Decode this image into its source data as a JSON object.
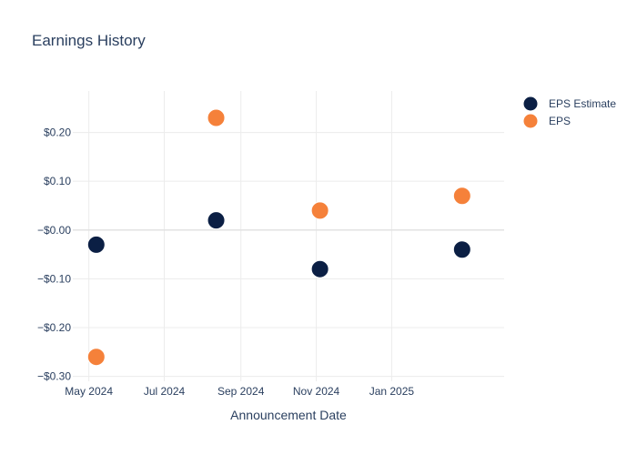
{
  "chart_data": {
    "type": "scatter",
    "title": "Earnings History",
    "xlabel": "Announcement Date",
    "ylabel": "",
    "x_type": "date",
    "xlim": [
      "2024-04-18",
      "2025-04-02"
    ],
    "ylim": [
      -0.31,
      0.285
    ],
    "x_ticks": [
      {
        "value": "2024-05-01",
        "label": "May 2024"
      },
      {
        "value": "2024-07-01",
        "label": "Jul 2024"
      },
      {
        "value": "2024-09-01",
        "label": "Sep 2024"
      },
      {
        "value": "2024-11-01",
        "label": "Nov 2024"
      },
      {
        "value": "2025-01-01",
        "label": "Jan 2025"
      }
    ],
    "y_ticks": [
      {
        "value": 0.2,
        "label": "$0.20"
      },
      {
        "value": 0.1,
        "label": "$0.10"
      },
      {
        "value": 0.0,
        "label": "−$0.00"
      },
      {
        "value": -0.1,
        "label": "−$0.10"
      },
      {
        "value": -0.2,
        "label": "−$0.20"
      },
      {
        "value": -0.3,
        "label": "−$0.30"
      }
    ],
    "grid": true,
    "legend_position": "top-right",
    "series": [
      {
        "name": "EPS Estimate",
        "color": "#0b1f44",
        "points": [
          {
            "x": "2024-05-07",
            "y": -0.03
          },
          {
            "x": "2024-08-12",
            "y": 0.02
          },
          {
            "x": "2024-11-04",
            "y": -0.08
          },
          {
            "x": "2025-02-27",
            "y": -0.04
          }
        ]
      },
      {
        "name": "EPS",
        "color": "#f5813a",
        "points": [
          {
            "x": "2024-05-07",
            "y": -0.26
          },
          {
            "x": "2024-08-12",
            "y": 0.23
          },
          {
            "x": "2024-11-04",
            "y": 0.04
          },
          {
            "x": "2025-02-27",
            "y": 0.07
          }
        ]
      }
    ]
  }
}
